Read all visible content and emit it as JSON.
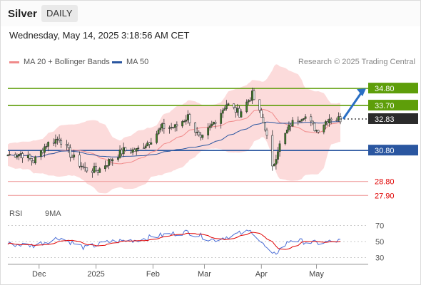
{
  "header": {
    "title": "Silver",
    "timeframe": "DAILY"
  },
  "timestamp": "Wednesday, May 14, 2025 3:18:56 AM CET",
  "legend": {
    "ma20_label": "MA 20 + Bollinger Bands",
    "ma50_label": "MA 50"
  },
  "credit": "Research © 2025 Trading Central",
  "rsi_legend": {
    "rsi_label": "RSI",
    "ma_label": "9MA"
  },
  "colors": {
    "candle": "#3e7f24",
    "ma20": "#f08a8a",
    "ma50": "#2a56a0",
    "band_fill": "#fbd5d5",
    "green_level": "#5e9e0a",
    "blue_level": "#2a56a0",
    "red_level": "#f0a0a0",
    "rsi": "#4d6fd6",
    "rsi_ma": "#e00000"
  },
  "chart_data": {
    "type": "candlestick",
    "title": "Silver",
    "timeframe": "DAILY",
    "x_start": "2024-11-14",
    "x_end": "2025-05-14",
    "ylim": [
      27.5,
      36.0
    ],
    "x_ticks": [
      "Dec",
      "2025",
      "Feb",
      "Mar",
      "Apr",
      "May"
    ],
    "price_ohlc_approx": [
      {
        "date": "2024-11-14",
        "close": 30.5
      },
      {
        "date": "2024-11-21",
        "close": 30.6
      },
      {
        "date": "2024-11-28",
        "close": 30.1
      },
      {
        "date": "2024-12-05",
        "close": 31.2
      },
      {
        "date": "2024-12-12",
        "close": 31.6
      },
      {
        "date": "2024-12-19",
        "close": 30.4
      },
      {
        "date": "2024-12-26",
        "close": 29.6
      },
      {
        "date": "2025-01-02",
        "close": 29.5
      },
      {
        "date": "2025-01-09",
        "close": 30.2
      },
      {
        "date": "2025-01-16",
        "close": 30.8
      },
      {
        "date": "2025-01-23",
        "close": 30.8
      },
      {
        "date": "2025-01-30",
        "close": 31.4
      },
      {
        "date": "2025-02-06",
        "close": 32.3
      },
      {
        "date": "2025-02-13",
        "close": 32.3
      },
      {
        "date": "2025-02-20",
        "close": 33.0
      },
      {
        "date": "2025-02-27",
        "close": 31.4
      },
      {
        "date": "2025-03-06",
        "close": 32.6
      },
      {
        "date": "2025-03-13",
        "close": 33.8
      },
      {
        "date": "2025-03-20",
        "close": 33.2
      },
      {
        "date": "2025-03-27",
        "close": 34.4
      },
      {
        "date": "2025-04-03",
        "close": 32.3
      },
      {
        "date": "2025-04-07",
        "close": 29.6
      },
      {
        "date": "2025-04-10",
        "close": 30.9
      },
      {
        "date": "2025-04-17",
        "close": 32.5
      },
      {
        "date": "2025-04-24",
        "close": 33.1
      },
      {
        "date": "2025-05-01",
        "close": 32.1
      },
      {
        "date": "2025-05-08",
        "close": 32.9
      },
      {
        "date": "2025-05-14",
        "close": 32.83
      }
    ],
    "current_price": {
      "value": 32.83,
      "label": "32.83"
    },
    "forecast_target": 34.8,
    "levels": [
      {
        "value": 34.8,
        "label": "34.80",
        "role": "resistance"
      },
      {
        "value": 33.7,
        "label": "33.70",
        "role": "resistance"
      },
      {
        "value": 30.8,
        "label": "30.80",
        "role": "pivot"
      },
      {
        "value": 28.8,
        "label": "28.80",
        "role": "support"
      },
      {
        "value": 27.9,
        "label": "27.90",
        "role": "support"
      }
    ],
    "rsi": {
      "ticks": [
        70,
        50,
        30
      ],
      "ylim": [
        25,
        75
      ],
      "series_approx": [
        {
          "date": "2024-11-14",
          "rsi": 47
        },
        {
          "date": "2024-11-28",
          "rsi": 45
        },
        {
          "date": "2024-12-12",
          "rsi": 55
        },
        {
          "date": "2024-12-26",
          "rsi": 42
        },
        {
          "date": "2025-01-09",
          "rsi": 50
        },
        {
          "date": "2025-01-23",
          "rsi": 52
        },
        {
          "date": "2025-02-06",
          "rsi": 58
        },
        {
          "date": "2025-02-20",
          "rsi": 62
        },
        {
          "date": "2025-03-06",
          "rsi": 52
        },
        {
          "date": "2025-03-20",
          "rsi": 60
        },
        {
          "date": "2025-03-27",
          "rsi": 63
        },
        {
          "date": "2025-04-07",
          "rsi": 32
        },
        {
          "date": "2025-04-17",
          "rsi": 52
        },
        {
          "date": "2025-05-01",
          "rsi": 48
        },
        {
          "date": "2025-05-14",
          "rsi": 51
        }
      ]
    }
  }
}
